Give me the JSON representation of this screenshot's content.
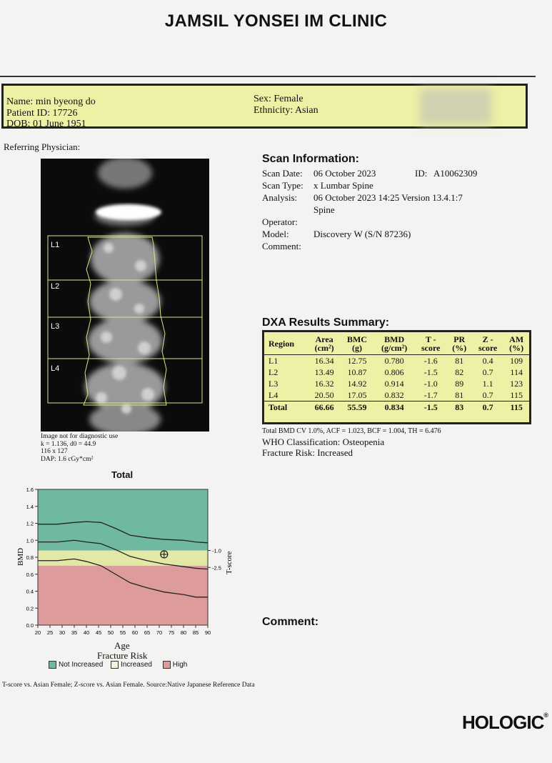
{
  "clinic": {
    "title": "JAMSIL YONSEI IM CLINIC"
  },
  "patient": {
    "name": "Name: min byeong do",
    "id": "Patient ID: 17726",
    "dob": "DOB: 01 June 1951",
    "sex": "Sex: Female",
    "ethnicity": "Ethnicity: Asian"
  },
  "referring_physician": "Referring Physician:",
  "image": {
    "levels": [
      "L1",
      "L2",
      "L3",
      "L4"
    ],
    "note": "Image not for diagnostic use",
    "k_line": "k = 1.136, d0 = 44.9",
    "size_line": "116 x 127",
    "dap_line": "DAP: 1.6 cGy*cm²"
  },
  "scan_info": {
    "title": "Scan Information:",
    "date_label": "Scan Date:",
    "date_value": "06 October 2023",
    "id_label": "ID:",
    "id_value": "A10062309",
    "type_label": "Scan Type:",
    "type_value": "x Lumbar Spine",
    "analysis_label": "Analysis:",
    "analysis_value": "06 October 2023 14:25 Version 13.4.1:7",
    "analysis_value2": "Spine",
    "operator_label": "Operator:",
    "model_label": "Model:",
    "model_value": "Discovery W (S/N 87236)",
    "comment_label": "Comment:"
  },
  "dxa": {
    "title": "DXA Results Summary:",
    "headers": [
      {
        "l1": "Region",
        "l2": ""
      },
      {
        "l1": "Area",
        "l2": "(cm²)"
      },
      {
        "l1": "BMC",
        "l2": "(g)"
      },
      {
        "l1": "BMD",
        "l2": "(g/cm²)"
      },
      {
        "l1": "T -",
        "l2": "score"
      },
      {
        "l1": "PR",
        "l2": "(%)"
      },
      {
        "l1": "Z -",
        "l2": "score"
      },
      {
        "l1": "AM",
        "l2": "(%)"
      }
    ],
    "rows": [
      [
        "L1",
        "16.34",
        "12.75",
        "0.780",
        "-1.6",
        "81",
        "0.4",
        "109"
      ],
      [
        "L2",
        "13.49",
        "10.87",
        "0.806",
        "-1.5",
        "82",
        "0.7",
        "114"
      ],
      [
        "L3",
        "16.32",
        "14.92",
        "0.914",
        "-1.0",
        "89",
        "1.1",
        "123"
      ],
      [
        "L4",
        "20.50",
        "17.05",
        "0.832",
        "-1.7",
        "81",
        "0.7",
        "115"
      ],
      [
        "Total",
        "66.66",
        "55.59",
        "0.834",
        "-1.5",
        "83",
        "0.7",
        "115"
      ]
    ],
    "footnote": "Total BMD CV 1.0%, ACF = 1.023, BCF = 1.004, TH = 6.476",
    "who": "WHO Classification: Osteopenia",
    "fracture_risk": "Fracture Risk: Increased"
  },
  "chart_data": {
    "type": "area",
    "title": "Total",
    "xlabel": "Age",
    "ylabel": "BMD",
    "y2label": "T-score",
    "xticks": [
      "20",
      "25",
      "30",
      "35",
      "40",
      "45",
      "50",
      "55",
      "60",
      "65",
      "70",
      "75",
      "80",
      "85",
      "90"
    ],
    "yticks": [
      "0.0",
      "0.2",
      "0.4",
      "0.6",
      "0.8",
      "1.0",
      "1.2",
      "1.4",
      "1.6"
    ],
    "xlim": [
      20,
      90
    ],
    "ylim": [
      0.0,
      1.6
    ],
    "y2ticks": [
      {
        "label": "-1.0",
        "bmd": 0.88
      },
      {
        "label": "-2.5",
        "bmd": 0.68
      }
    ],
    "zones": [
      {
        "name": "Not Increased",
        "from": 0.88,
        "to": 1.6,
        "color": "#6fb9a2"
      },
      {
        "name": "Increased",
        "from": 0.7,
        "to": 0.88,
        "color": "#e2e8a6"
      },
      {
        "name": "High",
        "from": 0.0,
        "to": 0.7,
        "color": "#dd9b9b"
      }
    ],
    "series": [
      {
        "x": [
          20,
          28,
          35,
          40,
          46,
          52,
          58,
          65,
          72,
          80,
          85,
          90
        ],
        "y": [
          1.19,
          1.19,
          1.21,
          1.22,
          1.21,
          1.14,
          1.06,
          1.03,
          1.01,
          1.0,
          0.98,
          0.97
        ]
      },
      {
        "x": [
          20,
          28,
          35,
          40,
          46,
          52,
          58,
          65,
          72,
          80,
          85,
          90
        ],
        "y": [
          0.98,
          0.98,
          1.0,
          0.98,
          0.96,
          0.89,
          0.81,
          0.76,
          0.72,
          0.69,
          0.67,
          0.66
        ]
      },
      {
        "x": [
          20,
          28,
          35,
          40,
          46,
          52,
          58,
          65,
          72,
          80,
          85,
          90
        ],
        "y": [
          0.76,
          0.76,
          0.78,
          0.75,
          0.7,
          0.6,
          0.5,
          0.44,
          0.39,
          0.36,
          0.33,
          0.33
        ]
      }
    ],
    "patient_point": {
      "x": 72,
      "y": 0.834
    },
    "fracture_risk_label": "Fracture Risk",
    "legend": [
      "Not Increased",
      "Increased",
      "High"
    ],
    "legend_colors": [
      "#6fb9a2",
      "#f2f2e0",
      "#dd9b9b"
    ]
  },
  "footer": {
    "reference": "T-score vs. Asian Female; Z-score vs. Asian Female. Source:Native Japanese Reference Data",
    "comment_label": "Comment:",
    "brand": "HOLOGIC"
  }
}
